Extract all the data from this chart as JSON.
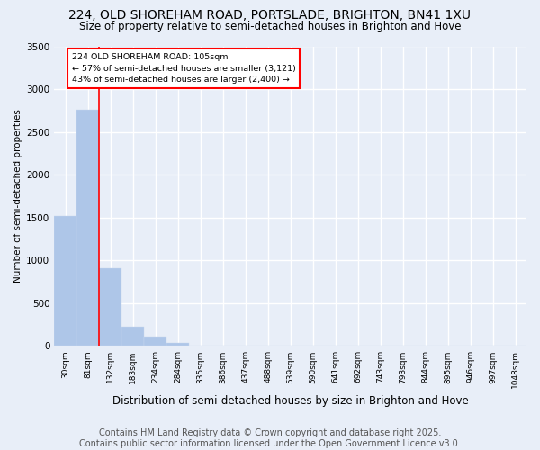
{
  "title": "224, OLD SHOREHAM ROAD, PORTSLADE, BRIGHTON, BN41 1XU",
  "subtitle": "Size of property relative to semi-detached houses in Brighton and Hove",
  "xlabel": "Distribution of semi-detached houses by size in Brighton and Hove",
  "ylabel": "Number of semi-detached properties",
  "categories": [
    "30sqm",
    "81sqm",
    "132sqm",
    "183sqm",
    "234sqm",
    "284sqm",
    "335sqm",
    "386sqm",
    "437sqm",
    "488sqm",
    "539sqm",
    "590sqm",
    "641sqm",
    "692sqm",
    "743sqm",
    "793sqm",
    "844sqm",
    "895sqm",
    "946sqm",
    "997sqm",
    "1048sqm"
  ],
  "values": [
    1520,
    2760,
    910,
    225,
    110,
    40,
    0,
    0,
    0,
    0,
    0,
    0,
    0,
    0,
    0,
    0,
    0,
    0,
    0,
    0,
    0
  ],
  "bar_color": "#aec6e8",
  "property_label": "224 OLD SHOREHAM ROAD: 105sqm",
  "annotation_smaller": "← 57% of semi-detached houses are smaller (3,121)",
  "annotation_larger": "43% of semi-detached houses are larger (2,400) →",
  "annotation_box_color": "#ff0000",
  "line_color": "#ff0000",
  "background_color": "#e8eef8",
  "grid_color": "#ffffff",
  "footer": "Contains HM Land Registry data © Crown copyright and database right 2025.\nContains public sector information licensed under the Open Government Licence v3.0.",
  "ylim": [
    0,
    3500
  ],
  "title_fontsize": 10,
  "subtitle_fontsize": 8.5,
  "axis_fontsize": 7.5,
  "footer_fontsize": 7
}
